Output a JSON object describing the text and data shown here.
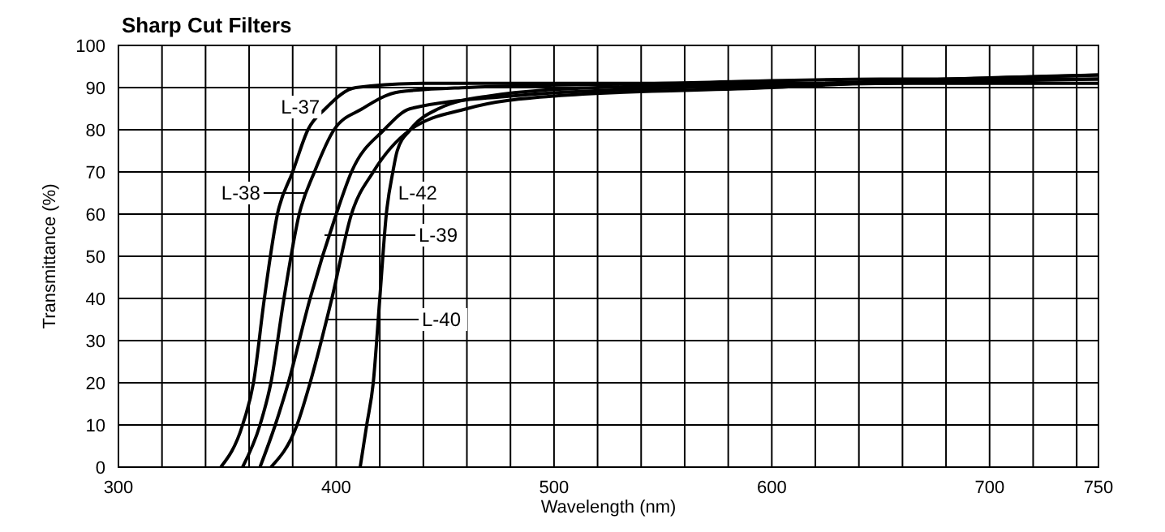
{
  "chart_data": {
    "type": "line",
    "title": "Sharp Cut Filters",
    "xlabel": "Wavelength (nm)",
    "ylabel": "Transmittance (%)",
    "xlim": [
      300,
      750
    ],
    "ylim": [
      0,
      100
    ],
    "xticks": [
      300,
      {
        "value": 320,
        "label": null
      },
      {
        "value": 340,
        "label": null
      },
      {
        "value": 360,
        "label": null
      },
      {
        "value": 380,
        "label": null
      },
      400,
      {
        "value": 420,
        "label": null
      },
      {
        "value": 440,
        "label": null
      },
      {
        "value": 460,
        "label": null
      },
      {
        "value": 480,
        "label": null
      },
      500,
      {
        "value": 520,
        "label": null
      },
      {
        "value": 540,
        "label": null
      },
      {
        "value": 560,
        "label": null
      },
      {
        "value": 580,
        "label": null
      },
      600,
      {
        "value": 620,
        "label": null
      },
      {
        "value": 640,
        "label": null
      },
      {
        "value": 660,
        "label": null
      },
      {
        "value": 680,
        "label": null
      },
      700,
      {
        "value": 720,
        "label": null
      },
      {
        "value": 740,
        "label": null
      },
      750
    ],
    "yticks": [
      0,
      10,
      20,
      30,
      40,
      50,
      60,
      70,
      80,
      90,
      100
    ],
    "grid": true,
    "marker": "none",
    "line_style": "solid",
    "series": [
      {
        "color": "#000000",
        "x": [
          347,
          357,
          362,
          367,
          373,
          380,
          387,
          395,
          409,
          440,
          500,
          600,
          750
        ],
        "values": [
          0,
          10,
          20,
          40,
          60,
          70,
          80,
          85,
          90,
          91,
          91,
          91,
          91
        ]
      },
      {
        "color": "#000000",
        "x": [
          357,
          365,
          370,
          376,
          383,
          390,
          399,
          412,
          429,
          460,
          550,
          650,
          750
        ],
        "values": [
          0,
          10,
          20,
          40,
          60,
          70,
          80,
          85,
          89,
          90,
          91,
          92,
          92
        ]
      },
      {
        "color": "#000000",
        "x": [
          365,
          372,
          378,
          388,
          400,
          407,
          422,
          434,
          480,
          560,
          650,
          750
        ],
        "values": [
          0,
          10,
          20,
          40,
          60,
          70,
          80,
          85,
          88,
          90,
          91,
          92
        ]
      },
      {
        "color": "#000000",
        "x": [
          370,
          382,
          388,
          398,
          407,
          417,
          434,
          460,
          500,
          600,
          680,
          750
        ],
        "values": [
          0,
          10,
          20,
          40,
          60,
          70,
          80,
          85,
          88,
          90,
          92,
          93
        ]
      },
      {
        "color": "#000000",
        "x": [
          411,
          414,
          417,
          420,
          423,
          426,
          428,
          434,
          447,
          470,
          520,
          620,
          750
        ],
        "values": [
          0,
          10,
          20,
          40,
          60,
          70,
          75,
          80,
          85,
          88,
          90,
          91,
          93
        ]
      }
    ],
    "annotations": [
      {
        "text": "L-37",
        "x": 388,
        "y": 80
      },
      {
        "text": "L-38",
        "x": 386,
        "y": 65
      },
      "L-39",
      "L-40",
      {
        "text": "L-42",
        "x": 424,
        "y": 65
      }
    ]
  }
}
